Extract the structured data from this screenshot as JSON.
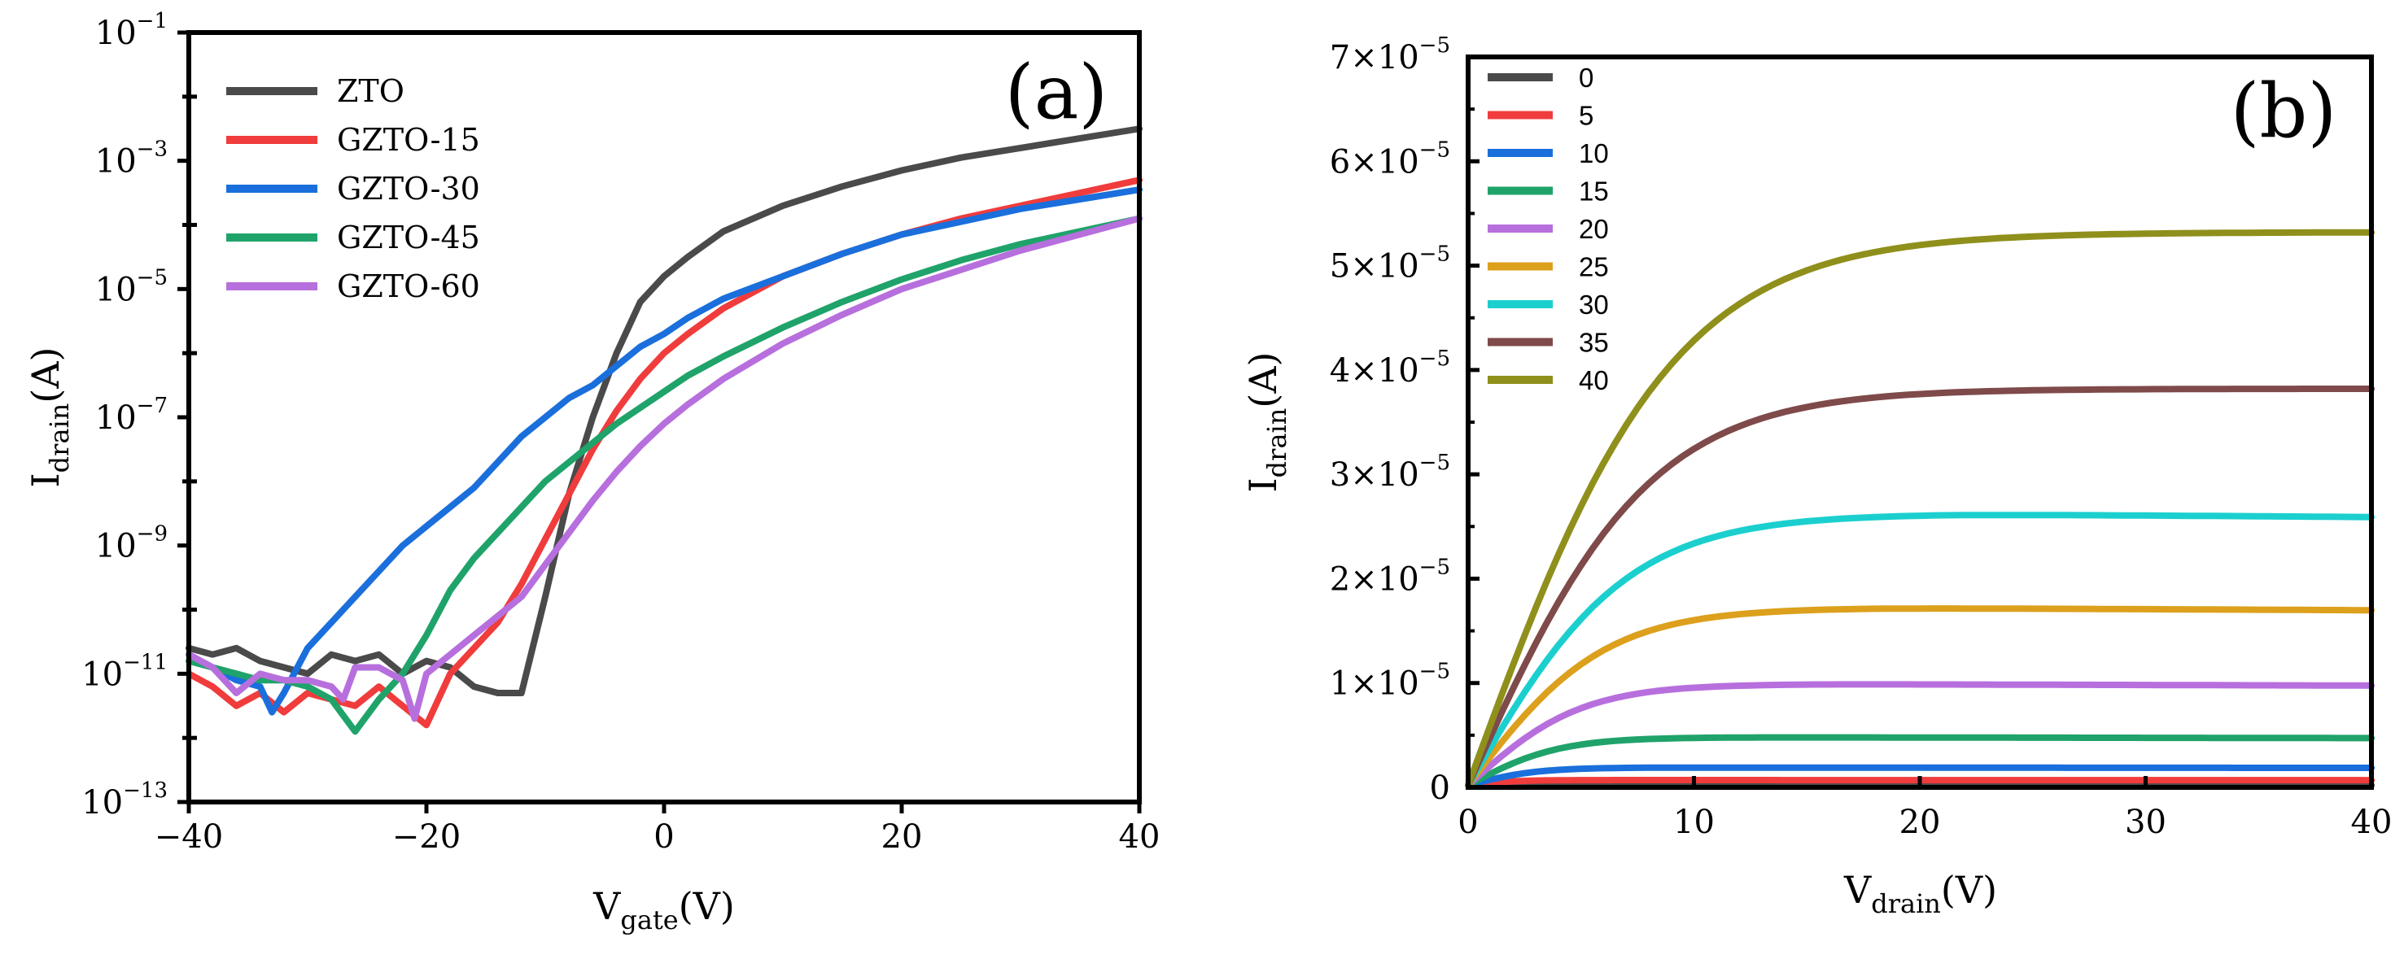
{
  "chart_data": [
    {
      "panel": "(a)",
      "type": "line",
      "xlabel": "V",
      "xlabel_sub": "gate",
      "xlabel_unit": "(V)",
      "ylabel": "I",
      "ylabel_sub": "drain",
      "ylabel_unit": "(A)",
      "xlim": [
        -40,
        40
      ],
      "ylim_log10": [
        -13,
        -1
      ],
      "yscale": "log",
      "xticks": [
        -40,
        -20,
        0,
        20,
        40
      ],
      "xtick_labels": [
        "−40",
        "−20",
        "0",
        "20",
        "40"
      ],
      "yticks_log10": [
        -13,
        -11,
        -9,
        -7,
        -5,
        -3,
        -1
      ],
      "ytick_labels": [
        {
          "base": "10",
          "exp": "−13"
        },
        {
          "base": "10",
          "exp": "−11"
        },
        {
          "base": "10",
          "exp": "−9"
        },
        {
          "base": "10",
          "exp": "−7"
        },
        {
          "base": "10",
          "exp": "−5"
        },
        {
          "base": "10",
          "exp": "−3"
        },
        {
          "base": "10",
          "exp": "−1"
        }
      ],
      "legend_position": "top-left",
      "series": [
        {
          "name": "ZTO",
          "color": "#4a4a4a",
          "x": [
            -40,
            -38,
            -36,
            -34,
            -32,
            -30,
            -28,
            -26,
            -24,
            -22,
            -20,
            -18,
            -16,
            -14,
            -12,
            -10,
            -8,
            -6,
            -4,
            -2,
            0,
            2,
            5,
            10,
            15,
            20,
            25,
            30,
            35,
            40
          ],
          "y_log10": [
            -10.6,
            -10.7,
            -10.6,
            -10.8,
            -10.9,
            -11.0,
            -10.7,
            -10.8,
            -10.7,
            -11.0,
            -10.8,
            -10.9,
            -11.2,
            -11.3,
            -11.3,
            -9.8,
            -8.2,
            -7.0,
            -6.0,
            -5.2,
            -4.8,
            -4.5,
            -4.1,
            -3.7,
            -3.4,
            -3.15,
            -2.95,
            -2.8,
            -2.65,
            -2.5
          ]
        },
        {
          "name": "GZTO-15",
          "color": "#f03c3c",
          "x": [
            -40,
            -38,
            -36,
            -34,
            -32,
            -30,
            -28,
            -26,
            -24,
            -22,
            -20,
            -18,
            -16,
            -14,
            -12,
            -10,
            -8,
            -6,
            -4,
            -2,
            0,
            2,
            5,
            10,
            15,
            20,
            25,
            30,
            35,
            40
          ],
          "y_log10": [
            -11.0,
            -11.2,
            -11.5,
            -11.3,
            -11.6,
            -11.3,
            -11.4,
            -11.5,
            -11.2,
            -11.5,
            -11.8,
            -11.0,
            -10.6,
            -10.2,
            -9.6,
            -8.9,
            -8.2,
            -7.5,
            -6.9,
            -6.4,
            -6.0,
            -5.7,
            -5.3,
            -4.8,
            -4.45,
            -4.15,
            -3.9,
            -3.7,
            -3.5,
            -3.3
          ]
        },
        {
          "name": "GZTO-30",
          "color": "#1a6fdc",
          "x": [
            -40,
            -38,
            -36,
            -34,
            -33,
            -32,
            -30,
            -28,
            -26,
            -24,
            -22,
            -20,
            -18,
            -16,
            -14,
            -12,
            -10,
            -8,
            -6,
            -4,
            -2,
            0,
            2,
            5,
            10,
            15,
            20,
            25,
            30,
            35,
            40
          ],
          "y_log10": [
            -10.7,
            -10.9,
            -11.1,
            -11.2,
            -11.6,
            -11.3,
            -10.6,
            -10.2,
            -9.8,
            -9.4,
            -9.0,
            -8.7,
            -8.4,
            -8.1,
            -7.7,
            -7.3,
            -7.0,
            -6.7,
            -6.5,
            -6.2,
            -5.9,
            -5.7,
            -5.45,
            -5.15,
            -4.8,
            -4.45,
            -4.15,
            -3.95,
            -3.75,
            -3.6,
            -3.45
          ]
        },
        {
          "name": "GZTO-45",
          "color": "#1fa36a",
          "x": [
            -40,
            -38,
            -36,
            -34,
            -32,
            -30,
            -28,
            -26,
            -24,
            -22,
            -20,
            -18,
            -16,
            -14,
            -12,
            -10,
            -8,
            -6,
            -4,
            -2,
            0,
            2,
            5,
            10,
            15,
            20,
            25,
            30,
            35,
            40
          ],
          "y_log10": [
            -10.8,
            -10.9,
            -11.0,
            -11.1,
            -11.1,
            -11.2,
            -11.4,
            -11.9,
            -11.4,
            -11.0,
            -10.4,
            -9.7,
            -9.2,
            -8.8,
            -8.4,
            -8.0,
            -7.7,
            -7.4,
            -7.1,
            -6.85,
            -6.6,
            -6.35,
            -6.05,
            -5.6,
            -5.2,
            -4.85,
            -4.55,
            -4.3,
            -4.1,
            -3.9
          ]
        },
        {
          "name": "GZTO-60",
          "color": "#b76fdd",
          "x": [
            -40,
            -38,
            -36,
            -34,
            -32,
            -30,
            -28,
            -27,
            -26,
            -24,
            -22,
            -21,
            -20,
            -18,
            -16,
            -14,
            -12,
            -10,
            -8,
            -6,
            -4,
            -2,
            0,
            2,
            5,
            10,
            15,
            20,
            25,
            30,
            35,
            40
          ],
          "y_log10": [
            -10.7,
            -10.9,
            -11.3,
            -11.0,
            -11.1,
            -11.1,
            -11.2,
            -11.4,
            -10.9,
            -10.9,
            -11.1,
            -11.7,
            -11.0,
            -10.7,
            -10.4,
            -10.1,
            -9.8,
            -9.3,
            -8.8,
            -8.3,
            -7.85,
            -7.45,
            -7.1,
            -6.8,
            -6.4,
            -5.85,
            -5.4,
            -5.0,
            -4.7,
            -4.4,
            -4.15,
            -3.9
          ]
        }
      ]
    },
    {
      "panel": "(b)",
      "type": "line",
      "xlabel": "V",
      "xlabel_sub": "drain",
      "xlabel_unit": "(V)",
      "ylabel": "I",
      "ylabel_sub": "drain",
      "ylabel_unit": "(A)",
      "xlim": [
        0,
        40
      ],
      "ylim": [
        0,
        7e-05
      ],
      "xticks": [
        0,
        10,
        20,
        30,
        40
      ],
      "xtick_labels": [
        "0",
        "10",
        "20",
        "30",
        "40"
      ],
      "yticks": [
        0,
        1e-05,
        2e-05,
        3e-05,
        4e-05,
        5e-05,
        6e-05,
        7e-05
      ],
      "ytick_labels": [
        {
          "coef": "0",
          "mult": "",
          "base": "",
          "exp": ""
        },
        {
          "coef": "1",
          "mult": "×",
          "base": "10",
          "exp": "−5"
        },
        {
          "coef": "2",
          "mult": "×",
          "base": "10",
          "exp": "−5"
        },
        {
          "coef": "3",
          "mult": "×",
          "base": "10",
          "exp": "−5"
        },
        {
          "coef": "4",
          "mult": "×",
          "base": "10",
          "exp": "−5"
        },
        {
          "coef": "5",
          "mult": "×",
          "base": "10",
          "exp": "−5"
        },
        {
          "coef": "6",
          "mult": "×",
          "base": "10",
          "exp": "−5"
        },
        {
          "coef": "7",
          "mult": "×",
          "base": "10",
          "exp": "−5"
        }
      ],
      "legend_title": "",
      "legend_position": "top-left",
      "series": [
        {
          "name": "0",
          "color": "#4a4a4a",
          "saturation": 0.0,
          "vknee": 2.0
        },
        {
          "name": "5",
          "color": "#f03c3c",
          "saturation": 5e-07,
          "vknee": 2.0
        },
        {
          "name": "10",
          "color": "#1a6fdc",
          "saturation": 1.7e-06,
          "vknee": 3.0
        },
        {
          "name": "15",
          "color": "#1fa36a",
          "saturation": 4.6e-06,
          "vknee": 4.0
        },
        {
          "name": "20",
          "color": "#b76fdd",
          "saturation": 9.7e-06,
          "vknee": 5.0
        },
        {
          "name": "25",
          "color": "#dca01c",
          "saturation": 1.7e-05,
          "vknee": 6.0
        },
        {
          "name": "30",
          "color": "#1ccfcf",
          "saturation": 2.6e-05,
          "vknee": 7.0
        },
        {
          "name": "35",
          "color": "#7f4a4a",
          "saturation": 3.8e-05,
          "vknee": 8.0
        },
        {
          "name": "40",
          "color": "#8f8f1c",
          "saturation": 5.3e-05,
          "vknee": 9.0
        }
      ]
    }
  ]
}
